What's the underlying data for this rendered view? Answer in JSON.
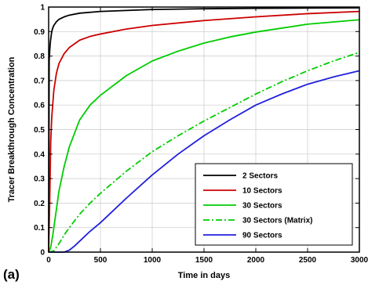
{
  "panel_label": "(a)",
  "chart_data": {
    "type": "line",
    "title": "",
    "xlabel": "Time in days",
    "ylabel": "Tracer Breakthrough Concentration",
    "xlim": [
      0,
      3000
    ],
    "ylim": [
      0,
      1
    ],
    "xticks": [
      0,
      500,
      1000,
      1500,
      2000,
      2500,
      3000
    ],
    "yticks": [
      0,
      0.1,
      0.2,
      0.3,
      0.4,
      0.5,
      0.6,
      0.7,
      0.8,
      0.9,
      1
    ],
    "grid": true,
    "legend_position": "lower-right",
    "series": [
      {
        "name": "2 Sectors",
        "color": "#000000",
        "dash": "solid",
        "x": [
          0,
          5,
          10,
          15,
          20,
          30,
          40,
          50,
          75,
          100,
          150,
          200,
          300,
          500,
          1000,
          1500,
          2000,
          2500,
          3000
        ],
        "y": [
          0,
          0.78,
          0.82,
          0.85,
          0.87,
          0.9,
          0.915,
          0.925,
          0.94,
          0.95,
          0.96,
          0.967,
          0.975,
          0.982,
          0.99,
          0.993,
          0.995,
          0.996,
          0.997
        ]
      },
      {
        "name": "10 Sectors",
        "color": "#cc0000",
        "dash": "solid",
        "x": [
          0,
          10,
          20,
          30,
          50,
          75,
          100,
          150,
          200,
          300,
          400,
          500,
          750,
          1000,
          1500,
          2000,
          2500,
          3000
        ],
        "y": [
          0,
          0.2,
          0.45,
          0.55,
          0.66,
          0.73,
          0.77,
          0.81,
          0.835,
          0.865,
          0.88,
          0.89,
          0.91,
          0.925,
          0.945,
          0.96,
          0.973,
          0.982
        ]
      },
      {
        "name": "30 Sectors",
        "color": "#00cc00",
        "dash": "solid",
        "x": [
          0,
          20,
          40,
          60,
          80,
          100,
          150,
          200,
          300,
          400,
          500,
          750,
          1000,
          1250,
          1500,
          1750,
          2000,
          2500,
          3000
        ],
        "y": [
          0,
          0.02,
          0.07,
          0.13,
          0.19,
          0.25,
          0.35,
          0.43,
          0.54,
          0.6,
          0.64,
          0.72,
          0.78,
          0.82,
          0.853,
          0.878,
          0.898,
          0.93,
          0.948
        ]
      },
      {
        "name": "30 Sectors (Matrix)",
        "color": "#00cc00",
        "dash": "dashdot",
        "x": [
          0,
          50,
          100,
          150,
          200,
          300,
          400,
          500,
          750,
          1000,
          1250,
          1500,
          1750,
          2000,
          2250,
          2500,
          2750,
          3000
        ],
        "y": [
          0,
          0.005,
          0.035,
          0.07,
          0.1,
          0.155,
          0.2,
          0.24,
          0.33,
          0.41,
          0.475,
          0.535,
          0.59,
          0.645,
          0.695,
          0.74,
          0.78,
          0.815
        ]
      },
      {
        "name": "90 Sectors",
        "color": "#2020dd",
        "dash": "solid",
        "x": [
          0,
          150,
          200,
          250,
          300,
          400,
          500,
          750,
          1000,
          1250,
          1500,
          1750,
          2000,
          2250,
          2500,
          2750,
          3000
        ],
        "y": [
          0,
          0,
          0.008,
          0.025,
          0.045,
          0.085,
          0.12,
          0.22,
          0.315,
          0.4,
          0.475,
          0.54,
          0.6,
          0.645,
          0.685,
          0.715,
          0.74
        ]
      }
    ]
  }
}
